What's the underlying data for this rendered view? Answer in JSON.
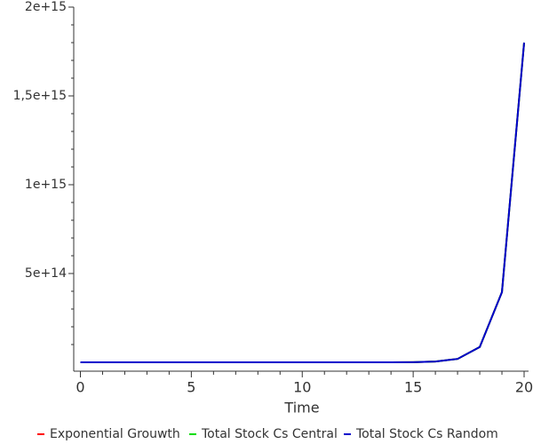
{
  "chart_data": {
    "type": "line",
    "x_label": "Time",
    "x": [
      0,
      1,
      2,
      3,
      4,
      5,
      6,
      7,
      8,
      9,
      10,
      11,
      12,
      13,
      14,
      15,
      16,
      17,
      18,
      19,
      20
    ],
    "series": [
      {
        "name": "Exponential Grouwth",
        "color": "#ff0000",
        "values": [
          0,
          0,
          0,
          0,
          0,
          0,
          0,
          0,
          0,
          0,
          0,
          0,
          0,
          0,
          200000000000,
          900000000000,
          4100000000000,
          19000000000000,
          86000000000000,
          395000000000000,
          1800000000000000
        ]
      },
      {
        "name": "Total Stock Cs Central",
        "color": "#00dd00",
        "values": [
          0,
          0,
          0,
          0,
          0,
          0,
          0,
          0,
          0,
          0,
          0,
          0,
          0,
          0,
          200000000000,
          900000000000,
          4100000000000,
          19000000000000,
          86000000000000,
          395000000000000,
          1800000000000000
        ]
      },
      {
        "name": "Total Stock Cs Random",
        "color": "#0000cc",
        "values": [
          0,
          0,
          0,
          0,
          0,
          0,
          0,
          0,
          0,
          0,
          0,
          0,
          0,
          0,
          200000000000,
          900000000000,
          4100000000000,
          19000000000000,
          86000000000000,
          395000000000000,
          1800000000000000
        ]
      }
    ],
    "xlim": [
      -0.3,
      20.2
    ],
    "xticks": [
      0,
      5,
      10,
      15,
      20
    ],
    "ylim": [
      -50000000000000,
      2000000000000000
    ],
    "yticks": [
      {
        "value": 500000000000000,
        "label": "5e+14"
      },
      {
        "value": 1000000000000000,
        "label": "1e+15"
      },
      {
        "value": 1500000000000000,
        "label": "1,5e+15"
      },
      {
        "value": 2000000000000000,
        "label": "2e+15"
      }
    ],
    "legend": "bottom"
  }
}
